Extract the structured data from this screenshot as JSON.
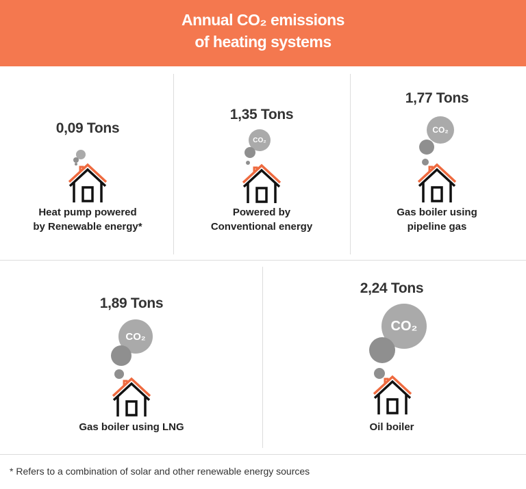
{
  "header": {
    "title_line1": "Annual CO₂ emissions",
    "title_line2": "of heating systems",
    "background_color": "#f4784f"
  },
  "panels": [
    {
      "value": "0,09 Tons",
      "label_line1": "Heat pump powered",
      "label_line2": "by Renewable energy*",
      "bubble_text": ""
    },
    {
      "value": "1,35 Tons",
      "label_line1": "Powered by",
      "label_line2": "Conventional energy",
      "bubble_text": "CO₂"
    },
    {
      "value": "1,77 Tons",
      "label_line1": "Gas boiler using",
      "label_line2": "pipeline gas",
      "bubble_text": "CO₂"
    },
    {
      "value": "1,89 Tons",
      "label_line1": "Gas boiler using LNG",
      "label_line2": "",
      "bubble_text": "CO₂"
    },
    {
      "value": "2,24 Tons",
      "label_line1": "Oil boiler",
      "label_line2": "",
      "bubble_text": "CO₂"
    }
  ],
  "footnote": "* Refers to a combination of solar and other renewable energy sources",
  "colors": {
    "roof": "#ee6a3f",
    "house": "#111111",
    "smoke_light": "#aaaaaa",
    "smoke_dark": "#8f8f8f"
  }
}
